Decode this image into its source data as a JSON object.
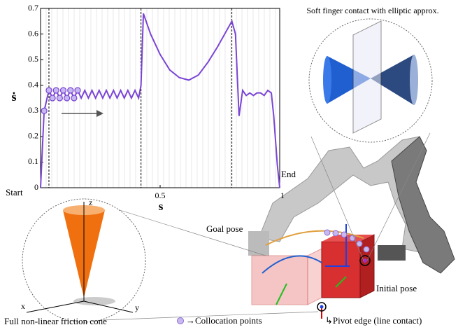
{
  "chart_data": {
    "type": "line",
    "x_label": "s",
    "y_label": "ṡ",
    "annotations": [
      "Start",
      "End"
    ],
    "x": [
      0,
      0.015,
      0.035,
      0.05,
      0.065,
      0.08,
      0.095,
      0.11,
      0.125,
      0.14,
      0.155,
      0.17,
      0.185,
      0.2,
      0.215,
      0.23,
      0.245,
      0.26,
      0.275,
      0.29,
      0.305,
      0.32,
      0.335,
      0.35,
      0.365,
      0.38,
      0.395,
      0.41,
      0.42,
      0.43,
      0.46,
      0.5,
      0.54,
      0.58,
      0.62,
      0.66,
      0.7,
      0.74,
      0.77,
      0.8,
      0.815,
      0.83,
      0.845,
      0.86,
      0.875,
      0.89,
      0.905,
      0.92,
      0.935,
      0.95,
      0.965,
      0.975,
      0.99,
      1
    ],
    "series": [
      {
        "color": "#7a45d6",
        "values": [
          0,
          0.3,
          0.38,
          0.35,
          0.38,
          0.35,
          0.38,
          0.35,
          0.38,
          0.35,
          0.38,
          0.35,
          0.38,
          0.35,
          0.38,
          0.35,
          0.38,
          0.35,
          0.38,
          0.35,
          0.38,
          0.35,
          0.38,
          0.35,
          0.38,
          0.35,
          0.38,
          0.35,
          0.4,
          0.68,
          0.6,
          0.52,
          0.46,
          0.43,
          0.42,
          0.44,
          0.49,
          0.55,
          0.6,
          0.65,
          0.6,
          0.28,
          0.38,
          0.36,
          0.37,
          0.36,
          0.37,
          0.37,
          0.36,
          0.38,
          0.37,
          0.28,
          0.09,
          0
        ]
      }
    ],
    "xlim": [
      0,
      1
    ],
    "ylim": [
      0,
      0.7
    ],
    "xticks": [
      0.5,
      1
    ],
    "yticks": [
      0,
      0.1,
      0.2,
      0.3,
      0.4,
      0.5,
      0.6,
      0.7
    ],
    "phase_lines": [
      0.035,
      0.42,
      0.8
    ]
  },
  "figure": {
    "soft_finger": "Soft finger contact with elliptic approx.",
    "goal_pose": "Goal pose",
    "initial_pose": "Initial pose",
    "friction_cone": "Full non-linear friction cone",
    "collocation": "Collocation points",
    "pivot_edge": "Pivot edge (line contact)",
    "axis_x": "x",
    "axis_y": "y",
    "axis_z": "z"
  }
}
